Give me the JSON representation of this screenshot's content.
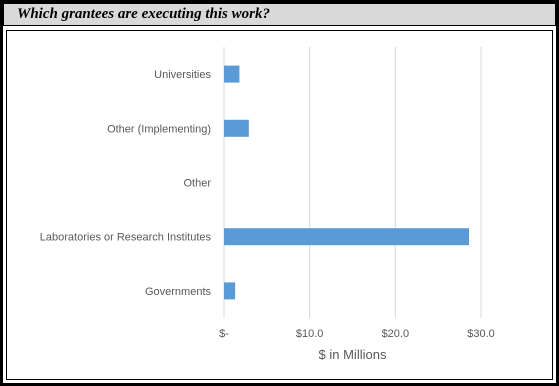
{
  "header": {
    "title": "Which grantees are executing this work?"
  },
  "chart_data": {
    "type": "bar",
    "orientation": "horizontal",
    "categories": [
      "Universities",
      "Other (Implementing)",
      "Other",
      "Laboratories or Research Institutes",
      "Governments"
    ],
    "values": [
      1.8,
      2.9,
      0,
      28.6,
      1.3
    ],
    "xlabel": "$ in Millions",
    "ylabel": "",
    "xlim": [
      0,
      30
    ],
    "xticks": [
      0,
      10,
      20,
      30
    ],
    "xtick_labels": [
      "$-",
      "$10.0",
      "$20.0",
      "$30.0"
    ],
    "grid": true,
    "bar_color": "#5b9bd5",
    "grid_color": "#d9d9d9"
  }
}
